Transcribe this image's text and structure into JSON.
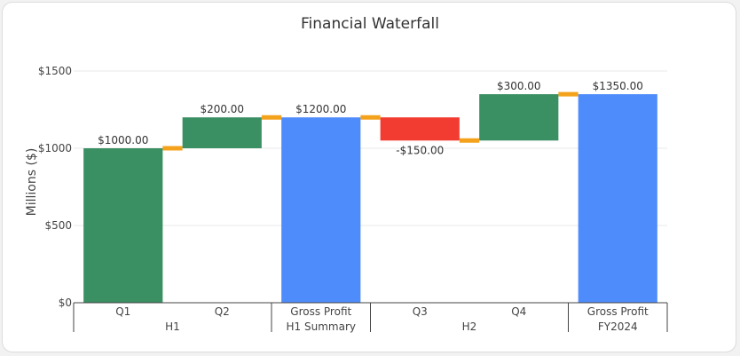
{
  "chart_data": {
    "type": "waterfall",
    "title": "Financial Waterfall",
    "ylabel": "Millions ($)",
    "ylim": [
      0,
      1500
    ],
    "yticks": [
      {
        "value": 0,
        "label": "$0"
      },
      {
        "value": 500,
        "label": "$500"
      },
      {
        "value": 1000,
        "label": "$1000"
      },
      {
        "value": 1500,
        "label": "$1500"
      }
    ],
    "bars": [
      {
        "category": "Q1",
        "measure": "relative",
        "value": 1000,
        "label": "$1000.00"
      },
      {
        "category": "Q2",
        "measure": "relative",
        "value": 200,
        "label": "$200.00"
      },
      {
        "category": "Gross Profit",
        "measure": "total",
        "value": 1200,
        "label": "$1200.00"
      },
      {
        "category": "Q3",
        "measure": "relative",
        "value": -150,
        "label": "-$150.00"
      },
      {
        "category": "Q4",
        "measure": "relative",
        "value": 300,
        "label": "$300.00"
      },
      {
        "category": "Gross Profit",
        "measure": "total",
        "value": 1350,
        "label": "$1350.00"
      }
    ],
    "groups": [
      {
        "label": "H1",
        "bar_start": 0,
        "bar_end": 1
      },
      {
        "label": "H1 Summary",
        "bar_start": 2,
        "bar_end": 2
      },
      {
        "label": "H2",
        "bar_start": 3,
        "bar_end": 4
      },
      {
        "label": "FY2024",
        "bar_start": 5,
        "bar_end": 5
      }
    ],
    "colors": {
      "increasing": "#3a8f63",
      "decreasing": "#f23c32",
      "total": "#4f8cfb",
      "connector": "#f4a21c",
      "grid": "#e8e8e8"
    },
    "grid": true,
    "legend": "none"
  }
}
